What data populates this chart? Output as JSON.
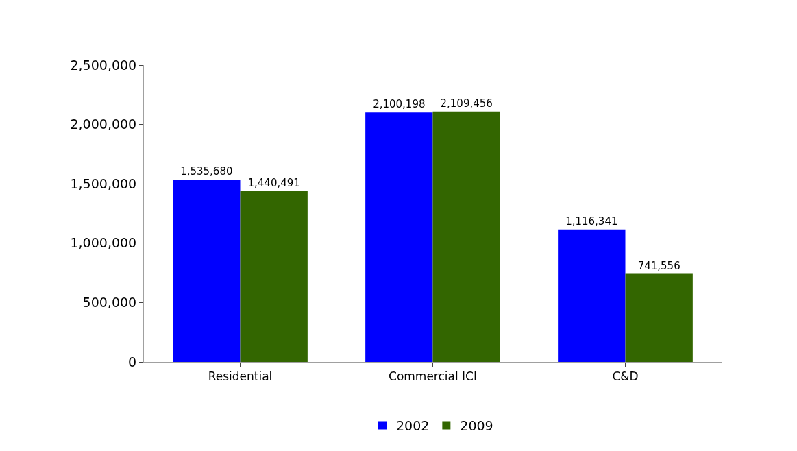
{
  "chart_data": {
    "type": "bar",
    "categories": [
      "Residential",
      "Commercial ICI",
      "C&D"
    ],
    "series": [
      {
        "name": "2002",
        "color": "#0000ff",
        "values": [
          1535680,
          2100198,
          1116341
        ],
        "value_labels": [
          "1,535,680",
          "2,100,198",
          "1,116,341"
        ]
      },
      {
        "name": "2009",
        "color": "#336600",
        "values": [
          1440491,
          2109456,
          741556
        ],
        "value_labels": [
          "1,440,491",
          "2,109,456",
          "741,556"
        ]
      }
    ],
    "ylim": [
      0,
      2500000
    ],
    "yticks": [
      0,
      {
        "value": 500000,
        "label": "500,000"
      },
      {
        "value": 1000000,
        "label": "1,000,000"
      },
      {
        "value": 1500000,
        "label": "1,500,000"
      },
      {
        "value": 2000000,
        "label": "2,000,000"
      },
      {
        "value": 2500000,
        "label": "2,500,000"
      }
    ],
    "legend": "bottom"
  }
}
